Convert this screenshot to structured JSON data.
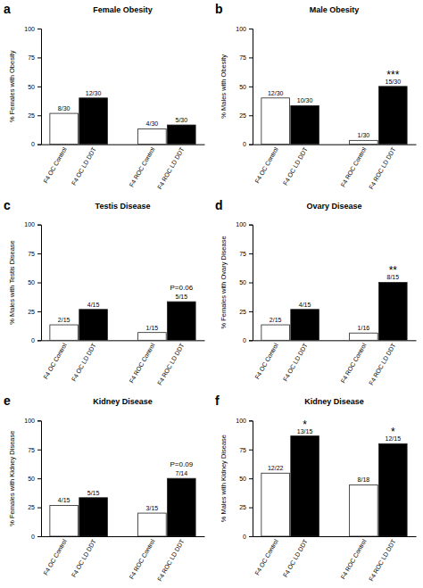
{
  "chart_data": [
    {
      "type": "bar",
      "label": "a",
      "title": "Female  Obesity",
      "ylabel": "% Females with Obesity",
      "categories": [
        "F4 OC Control",
        "F4 OC LD DDT",
        "F4 ROC Control",
        "F4 ROC LD DDT"
      ],
      "values": [
        26.67,
        40.0,
        13.33,
        16.67
      ],
      "fractions": [
        "8/30",
        "12/30",
        "4/30",
        "5/30"
      ],
      "colors": [
        "white",
        "black",
        "white",
        "black"
      ],
      "annotations": [],
      "ylim": [
        0,
        100
      ],
      "yticks": [
        0,
        25,
        50,
        75,
        100
      ]
    },
    {
      "type": "bar",
      "label": "b",
      "title": "Male Obesity",
      "ylabel": "% Males with Obesity",
      "categories": [
        "F4 OC Control",
        "F4 OC LD DDT",
        "F4 ROC Control",
        "F4 ROC LD DDT"
      ],
      "values": [
        40.0,
        33.33,
        3.33,
        50.0
      ],
      "fractions": [
        "12/30",
        "10/30",
        "1/30",
        "15/30"
      ],
      "colors": [
        "white",
        "black",
        "white",
        "black"
      ],
      "annotations": [
        {
          "category": "F4 ROC LD DDT",
          "text": "***"
        }
      ],
      "ylim": [
        0,
        100
      ],
      "yticks": [
        0,
        25,
        50,
        75,
        100
      ]
    },
    {
      "type": "bar",
      "label": "c",
      "title": "Testis Disease",
      "ylabel": "% Males with Testis Disease",
      "categories": [
        "F4 OC Control",
        "F4 OC LD DDT",
        "F4 ROC Control",
        "F4 ROC LD DDT"
      ],
      "values": [
        13.33,
        26.67,
        6.67,
        33.33
      ],
      "fractions": [
        "2/15",
        "4/15",
        "1/15",
        "5/15"
      ],
      "colors": [
        "white",
        "black",
        "white",
        "black"
      ],
      "annotations": [
        {
          "category": "F4 ROC LD DDT",
          "text": "P=0.06"
        }
      ],
      "ylim": [
        0,
        100
      ],
      "yticks": [
        0,
        25,
        50,
        75,
        100
      ]
    },
    {
      "type": "bar",
      "label": "d",
      "title": "Ovary Disease",
      "ylabel": "% Females with Ovary Disease",
      "categories": [
        "F4 OC Control",
        "F4 OC LD DDT",
        "F4 ROC Control",
        "F4 ROC LD DDT"
      ],
      "values": [
        13.33,
        26.67,
        6.25,
        50.0
      ],
      "fractions": [
        "2/15",
        "4/15",
        "1/16",
        "8/15"
      ],
      "colors": [
        "white",
        "black",
        "white",
        "black"
      ],
      "annotations": [
        {
          "category": "F4 ROC LD DDT",
          "text": "**"
        }
      ],
      "ylim": [
        0,
        100
      ],
      "yticks": [
        0,
        25,
        50,
        75,
        100
      ]
    },
    {
      "type": "bar",
      "label": "e",
      "title": "Kidney Disease",
      "ylabel": "% Females with Kidney Disease",
      "categories": [
        "F4 OC Control",
        "F4 OC LD DDT",
        "F4 ROC Control",
        "F4 ROC LD DDT"
      ],
      "values": [
        26.67,
        33.33,
        20.0,
        50.0
      ],
      "fractions": [
        "4/15",
        "5/15",
        "3/15",
        "7/14"
      ],
      "colors": [
        "white",
        "black",
        "white",
        "black"
      ],
      "annotations": [
        {
          "category": "F4 ROC LD DDT",
          "text": "P=0.09"
        }
      ],
      "ylim": [
        0,
        100
      ],
      "yticks": [
        0,
        25,
        50,
        75,
        100
      ]
    },
    {
      "type": "bar",
      "label": "f",
      "title": "Kidney Disease",
      "ylabel": "% Males with Kidney Disease",
      "categories": [
        "F4 OC Control",
        "F4 OC LD DDT",
        "F4 ROC Control",
        "F4 ROC LD DDT"
      ],
      "values": [
        54.55,
        86.67,
        44.44,
        80.0
      ],
      "fractions": [
        "12/22",
        "13/15",
        "8/18",
        "12/15"
      ],
      "colors": [
        "white",
        "black",
        "white",
        "black"
      ],
      "annotations": [
        {
          "category": "F4 OC LD DDT",
          "text": "*"
        },
        {
          "category": "F4 ROC LD DDT",
          "text": "*"
        }
      ],
      "ylim": [
        0,
        100
      ],
      "yticks": [
        0,
        25,
        50,
        75,
        100
      ]
    }
  ]
}
